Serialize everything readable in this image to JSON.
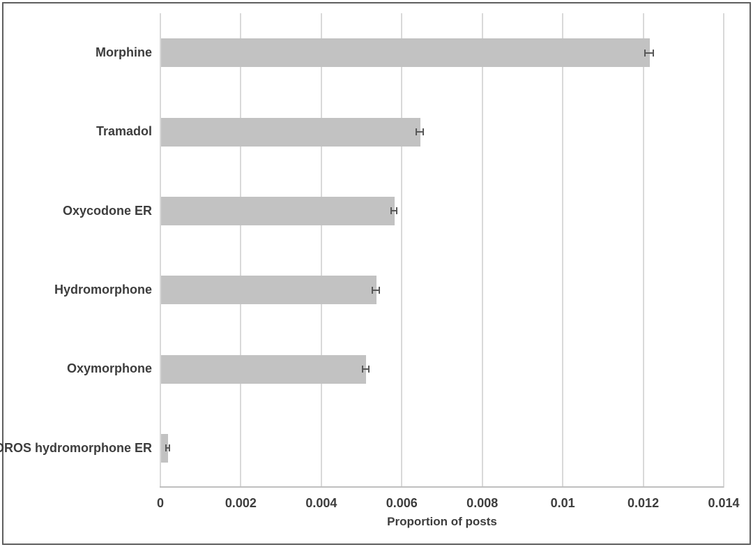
{
  "figure": {
    "background": "#ffffff",
    "border_color": "#5f5f5f"
  },
  "chart_data": {
    "type": "bar",
    "orientation": "horizontal",
    "title": "",
    "xlabel": "Proportion of posts",
    "ylabel": "",
    "categories": [
      "Morphine",
      "Tramadol",
      "Oxycodone ER",
      "Hydromorphone",
      "Oxymorphone",
      "OROS hydromorphone ER"
    ],
    "values": [
      0.01215,
      0.00645,
      0.0058,
      0.00535,
      0.0051,
      0.00018
    ],
    "error_bars": [
      0.00012,
      0.0001,
      9e-05,
      0.0001,
      9e-05,
      6e-05
    ],
    "xlim": [
      0,
      0.014
    ],
    "xticks": [
      {
        "label": "0",
        "value": 0
      },
      {
        "label": "0.002",
        "value": 0.002
      },
      {
        "label": "0.004",
        "value": 0.004
      },
      {
        "label": "0.006",
        "value": 0.006
      },
      {
        "label": "0.008",
        "value": 0.008
      },
      {
        "label": "0.01",
        "value": 0.01
      },
      {
        "label": "0.012",
        "value": 0.012
      },
      {
        "label": "0.014",
        "value": 0.014
      }
    ],
    "grid": "vertical",
    "legend": "none",
    "bar_color": "#c2c2c2",
    "error_bar_color": "#595959",
    "gridline_color": "#d9d9d9",
    "axis_line_color": "#bfbfbf",
    "text_color": "#3d3d3d"
  }
}
